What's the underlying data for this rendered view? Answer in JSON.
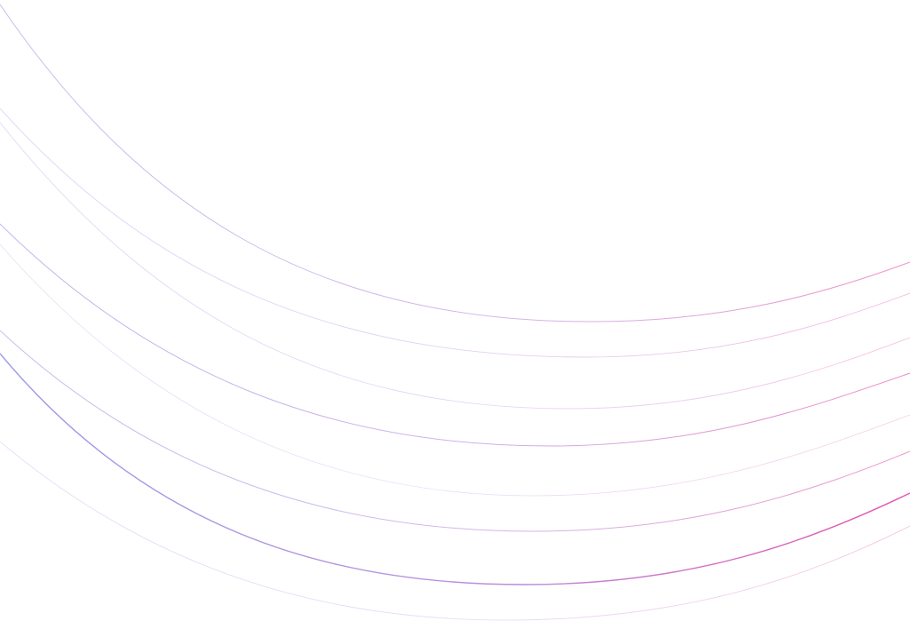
{
  "background": {
    "color": "#ffffff",
    "gradient_start": "#8c8ce0",
    "gradient_end": "#e0369e"
  }
}
